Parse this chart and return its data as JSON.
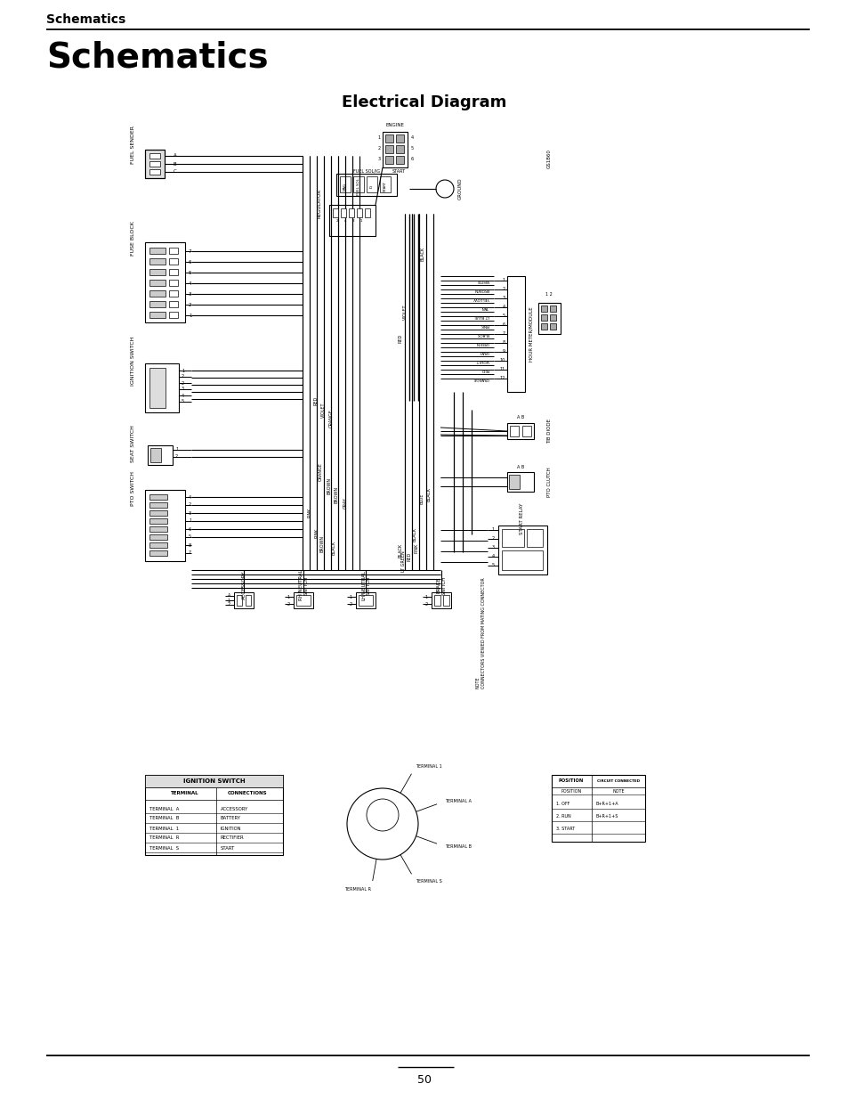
{
  "page_title_small": "Schematics",
  "page_title_large": "Schematics",
  "diagram_title": "Electrical Diagram",
  "page_number": "50",
  "bg_color": "#ffffff",
  "fig_width": 9.54,
  "fig_height": 12.35,
  "small_title_fontsize": 10,
  "large_title_fontsize": 28,
  "diagram_title_fontsize": 13
}
